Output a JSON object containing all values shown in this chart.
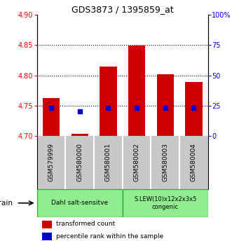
{
  "title": "GDS3873 / 1395859_at",
  "samples": [
    "GSM579999",
    "GSM580000",
    "GSM580001",
    "GSM580002",
    "GSM580003",
    "GSM580004"
  ],
  "transformed_counts": [
    4.762,
    4.704,
    4.815,
    4.849,
    4.802,
    4.789
  ],
  "percentile_ranks": [
    23,
    20,
    23,
    23,
    23,
    23
  ],
  "bar_bottom": 4.7,
  "ylim_left": [
    4.7,
    4.9
  ],
  "ylim_right": [
    0,
    100
  ],
  "yticks_left": [
    4.7,
    4.75,
    4.8,
    4.85,
    4.9
  ],
  "yticks_right": [
    0,
    25,
    50,
    75,
    100
  ],
  "ytick_labels_right": [
    "0",
    "25",
    "50",
    "75",
    "100%"
  ],
  "bar_color": "#cc0000",
  "dot_color": "#0000cc",
  "group1_label": "Dahl salt-sensitve",
  "group2_label": "S.LEW(10)x12x2x3x5\ncongenic",
  "group_color": "#90ee90",
  "legend_items": [
    {
      "color": "#cc0000",
      "label": "transformed count"
    },
    {
      "color": "#0000cc",
      "label": "percentile rank within the sample"
    }
  ],
  "strain_label": "strain",
  "bar_width": 0.6,
  "label_bg": "#c8c8c8",
  "grid_yticks": [
    4.75,
    4.8,
    4.85
  ]
}
